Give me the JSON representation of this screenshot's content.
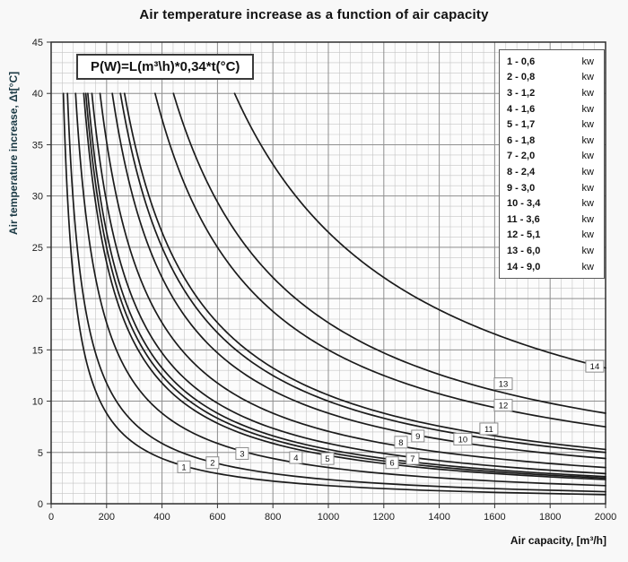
{
  "chart_data": {
    "type": "line",
    "title": "Air temperature increase as a function of air capacity",
    "formula": "P(W)=L(m³\\h)*0,34*t(°C)",
    "xlabel": "Air capacity, [m³/h]",
    "ylabel": "Air temperature increase, Δt[°C]",
    "xlim": [
      0,
      2000
    ],
    "ylim": [
      0,
      45
    ],
    "x_ticks": [
      0,
      200,
      400,
      600,
      800,
      1000,
      1200,
      1400,
      1600,
      1800,
      2000
    ],
    "y_ticks": [
      0,
      5,
      10,
      15,
      20,
      25,
      30,
      35,
      40,
      45
    ],
    "x_minor_step": 40,
    "y_minor_step": 1,
    "grid": "on",
    "legend_position": "upper right",
    "legend_unit": "kw",
    "curve_t_max": 40,
    "curve_model": "Δt(°C) = P(W) / (0.34 · L(m³/h)), drawn from Δt=40 down to L=2000",
    "series": [
      {
        "id": 1,
        "power_kw": 0.6,
        "value_label": "0,6",
        "label_x": 479,
        "label_y": 3.6
      },
      {
        "id": 2,
        "power_kw": 0.8,
        "value_label": "0,8",
        "label_x": 582,
        "label_y": 4.0
      },
      {
        "id": 3,
        "power_kw": 1.2,
        "value_label": "1,2",
        "label_x": 689,
        "label_y": 4.9
      },
      {
        "id": 4,
        "power_kw": 1.6,
        "value_label": "1,6",
        "label_x": 883,
        "label_y": 4.5
      },
      {
        "id": 5,
        "power_kw": 1.7,
        "value_label": "1,7",
        "label_x": 997,
        "label_y": 4.4
      },
      {
        "id": 6,
        "power_kw": 1.8,
        "value_label": "1,8",
        "label_x": 1230,
        "label_y": 4.0
      },
      {
        "id": 7,
        "power_kw": 2.0,
        "value_label": "2,0",
        "label_x": 1304,
        "label_y": 4.4
      },
      {
        "id": 8,
        "power_kw": 2.4,
        "value_label": "2,4",
        "label_x": 1262,
        "label_y": 6.0
      },
      {
        "id": 9,
        "power_kw": 3.0,
        "value_label": "3,0",
        "label_x": 1323,
        "label_y": 6.6
      },
      {
        "id": 10,
        "power_kw": 3.4,
        "value_label": "3,4",
        "label_x": 1485,
        "label_y": 6.3
      },
      {
        "id": 11,
        "power_kw": 3.6,
        "value_label": "3,6",
        "label_x": 1579,
        "label_y": 7.3
      },
      {
        "id": 12,
        "power_kw": 5.1,
        "value_label": "5,1",
        "label_x": 1631,
        "label_y": 9.6
      },
      {
        "id": 13,
        "power_kw": 6.0,
        "value_label": "6,0",
        "label_x": 1631,
        "label_y": 11.7
      },
      {
        "id": 14,
        "power_kw": 9.0,
        "value_label": "9,0",
        "label_x": 1961,
        "label_y": 13.4
      }
    ]
  }
}
